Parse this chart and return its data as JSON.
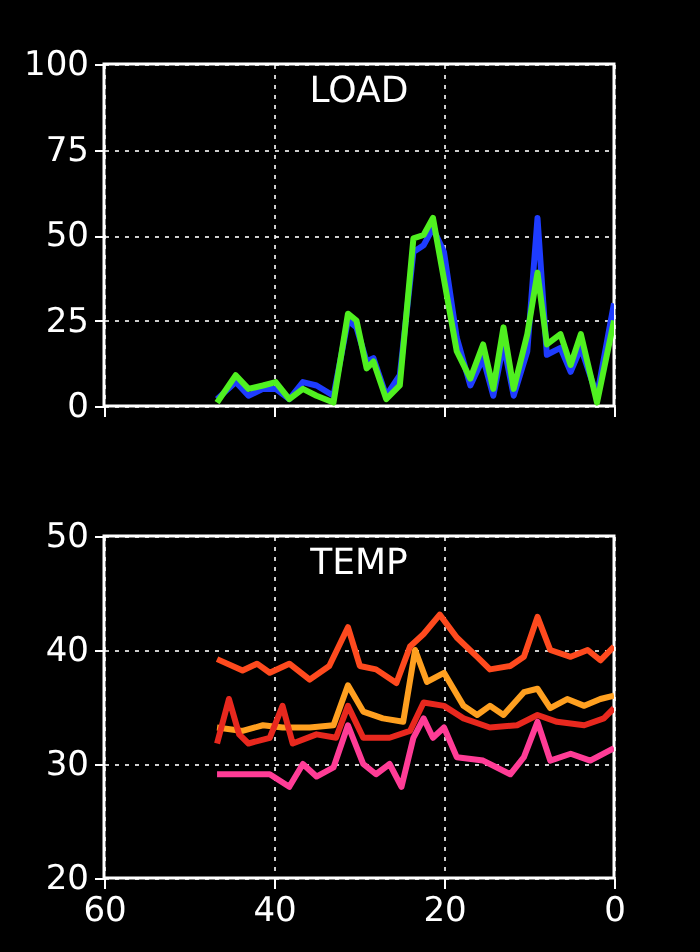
{
  "chart_data": [
    {
      "type": "line",
      "title": "LOAD",
      "x": [
        46.7,
        44.5,
        43,
        41.3,
        39.8,
        38.2,
        36.6,
        35,
        33,
        31.3,
        30.3,
        29.1,
        28.3,
        26.8,
        25.2,
        23.6,
        22.4,
        21.3,
        20,
        18.5,
        16.9,
        15.4,
        14.2,
        13,
        11.8,
        10.2,
        9,
        7.9,
        6.3,
        5.1,
        3.9,
        2,
        0
      ],
      "series": [
        {
          "color": "#1e3cff",
          "values": [
            2,
            7,
            3,
            5,
            5,
            2,
            7,
            6,
            3,
            25,
            23,
            13,
            14,
            3,
            9,
            45,
            47,
            52,
            45,
            20,
            6,
            14,
            3,
            18,
            3,
            16,
            55,
            15,
            17,
            10,
            17,
            3,
            30
          ]
        },
        {
          "color": "#50f020",
          "values": [
            1,
            9,
            5,
            6,
            7,
            2,
            5,
            3,
            1,
            27,
            25,
            11,
            13,
            2,
            6,
            49,
            50,
            55,
            37,
            16,
            8,
            18,
            5,
            23,
            5,
            21,
            39,
            18,
            21,
            12,
            21,
            1,
            25
          ]
        }
      ],
      "xlim": [
        60,
        0
      ],
      "xticks": [
        60,
        40,
        20,
        0
      ],
      "ylim": [
        0,
        100
      ],
      "yticks": [
        0,
        25,
        50,
        75,
        100
      ],
      "grid": true,
      "tick_labels": "y"
    },
    {
      "type": "line",
      "title": "TEMP",
      "series": [
        {
          "color": "#ff4a1e",
          "x": [
            46.7,
            43.7,
            42,
            40.5,
            38.2,
            35.8,
            33.5,
            31.3,
            29.9,
            28,
            25.6,
            24,
            22.4,
            20.5,
            18.5,
            16.1,
            14.6,
            12.2,
            10.6,
            9,
            7.5,
            5.1,
            3.1,
            1.6,
            0
          ],
          "values": [
            39.2,
            38.2,
            38.8,
            38,
            38.8,
            37.4,
            38.6,
            42,
            38.6,
            38.3,
            37.1,
            40.3,
            41.4,
            43.1,
            41.1,
            39.4,
            38.3,
            38.6,
            39.4,
            42.9,
            40,
            39.4,
            40,
            39.1,
            40.3
          ]
        },
        {
          "color": "#ffa020",
          "x": [
            46.7,
            43.7,
            41.3,
            39,
            35.8,
            33,
            31.3,
            29.5,
            27.2,
            24.8,
            23.4,
            22,
            20,
            17.7,
            16.1,
            14.6,
            13,
            10.6,
            9,
            7.5,
            5.5,
            3.5,
            1.6,
            0
          ],
          "values": [
            33.2,
            32.9,
            33.4,
            33.2,
            33.2,
            33.4,
            36.9,
            34.6,
            34,
            33.7,
            40,
            37.2,
            38,
            35.1,
            34.3,
            35.1,
            34.3,
            36.3,
            36.6,
            34.9,
            35.7,
            35.1,
            35.7,
            36
          ]
        },
        {
          "color": "#e8281e",
          "x": [
            46.7,
            45.3,
            44.1,
            43,
            40.5,
            39,
            37.8,
            35,
            32.7,
            31.3,
            29.5,
            26.4,
            24,
            22.4,
            20,
            17.7,
            14.6,
            11.4,
            9,
            6.7,
            3.5,
            1.2,
            0
          ],
          "values": [
            31.8,
            35.7,
            32.6,
            31.8,
            32.3,
            35.1,
            31.8,
            32.6,
            32.3,
            35.1,
            32.3,
            32.3,
            32.9,
            35.4,
            35.1,
            34,
            33.2,
            33.4,
            34.3,
            33.7,
            33.4,
            34,
            34.9
          ]
        },
        {
          "color": "#ff3c96",
          "x": [
            46.7,
            40.5,
            38.2,
            36.6,
            35,
            33,
            31.3,
            29.5,
            28,
            26.4,
            25,
            23.6,
            22.4,
            21.3,
            20,
            18.5,
            15.4,
            12.2,
            10.6,
            9,
            7.5,
            5.1,
            2.8,
            0
          ],
          "values": [
            29.1,
            29.1,
            28,
            30,
            28.9,
            29.7,
            33.4,
            30,
            29.1,
            30,
            28,
            32.3,
            34,
            32.3,
            33.2,
            30.6,
            30.3,
            29.1,
            30.6,
            33.7,
            30.3,
            30.9,
            30.3,
            31.4
          ]
        }
      ],
      "xlim": [
        60,
        0
      ],
      "xticks": [
        60,
        40,
        20,
        0
      ],
      "ylim": [
        20,
        50
      ],
      "yticks": [
        20,
        30,
        40,
        50
      ],
      "grid": true
    }
  ]
}
